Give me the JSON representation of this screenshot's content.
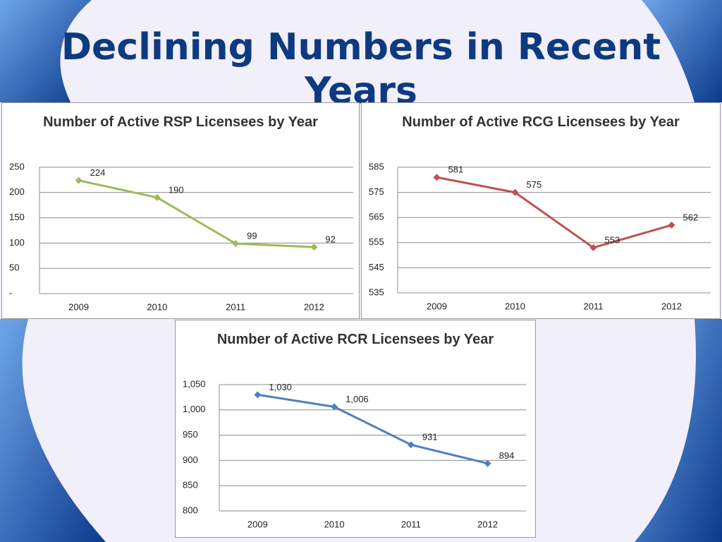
{
  "title": "Declining Numbers in Recent Years",
  "chart_data": [
    {
      "type": "line",
      "title": "Number of Active RSP Licensees by Year",
      "categories": [
        "2009",
        "2010",
        "2011",
        "2012"
      ],
      "values": [
        224,
        190,
        99,
        92
      ],
      "color": "#9bbb59",
      "ylim": [
        0,
        250
      ],
      "yticks": [
        {
          "value": 0,
          "label": "-"
        },
        50,
        100,
        150,
        200,
        250
      ],
      "grid": true
    },
    {
      "type": "line",
      "title": "Number of Active RCG Licensees by Year",
      "categories": [
        "2009",
        "2010",
        "2011",
        "2012"
      ],
      "values": [
        581,
        575,
        553,
        562
      ],
      "color": "#c0504d",
      "ylim": [
        535,
        585
      ],
      "yticks": [
        535,
        545,
        555,
        565,
        575,
        585
      ],
      "grid": true
    },
    {
      "type": "line",
      "title": "Number of Active RCR Licensees by Year",
      "categories": [
        "2009",
        "2010",
        "2011",
        "2012"
      ],
      "values": [
        1030,
        1006,
        931,
        894
      ],
      "value_labels": [
        "1,030",
        "1,006",
        "931",
        "894"
      ],
      "color": "#4f81bd",
      "ylim": [
        800,
        1050
      ],
      "yticks": [
        800,
        850,
        900,
        950,
        {
          "value": 1000,
          "label": "1,000"
        },
        {
          "value": 1050,
          "label": "1,050"
        }
      ],
      "grid": true
    }
  ]
}
